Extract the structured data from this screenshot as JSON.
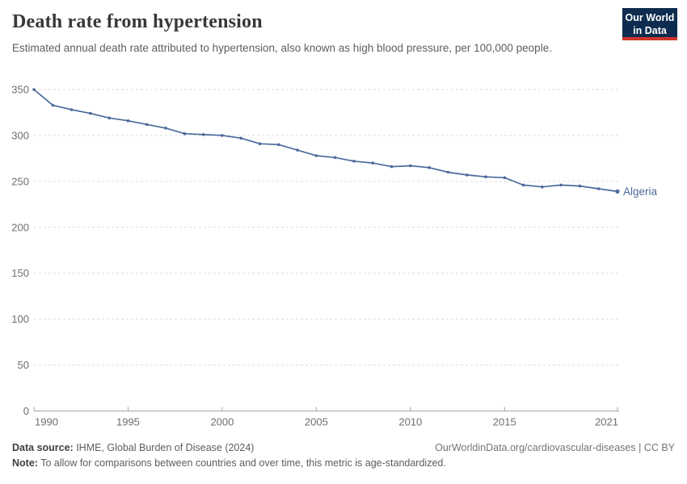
{
  "header": {
    "title": "Death rate from hypertension",
    "subtitle": "Estimated annual death rate attributed to hypertension, also known as high blood pressure, per 100,000 people.",
    "logo": {
      "line1": "Our World",
      "line2": "in Data",
      "bg_color": "#0d2c4f",
      "accent_color": "#d0352b"
    }
  },
  "chart_data": {
    "type": "line",
    "title": "Death rate from hypertension",
    "xlabel": "",
    "ylabel": "",
    "xlim": [
      1990,
      2021
    ],
    "ylim": [
      0,
      350
    ],
    "x_ticks": [
      1990,
      1995,
      2000,
      2005,
      2010,
      2015,
      2021
    ],
    "y_ticks": [
      0,
      50,
      100,
      150,
      200,
      250,
      300,
      350
    ],
    "grid": "horizontal-dashed",
    "legend_position": "end-of-line",
    "series": [
      {
        "name": "Algeria",
        "color": "#4c6a9c",
        "x": [
          1990,
          1991,
          1992,
          1993,
          1994,
          1995,
          1996,
          1997,
          1998,
          1999,
          2000,
          2001,
          2002,
          2003,
          2004,
          2005,
          2006,
          2007,
          2008,
          2009,
          2010,
          2011,
          2012,
          2013,
          2014,
          2015,
          2016,
          2017,
          2018,
          2019,
          2020,
          2021
        ],
        "values": [
          350,
          333,
          328,
          324,
          319,
          316,
          312,
          308,
          302,
          301,
          300,
          297,
          291,
          290,
          284,
          278,
          276,
          272,
          270,
          266,
          267,
          265,
          260,
          257,
          255,
          254,
          246,
          244,
          246,
          245,
          242,
          239
        ]
      }
    ],
    "axis_color": "#a3a3a3",
    "gridline_color": "#dcdcdc",
    "tick_label_color": "#6e6e6e"
  },
  "footer": {
    "source_label": "Data source:",
    "source_text": " IHME, Global Burden of Disease (2024)",
    "note_label": "Note:",
    "note_text": " To allow for comparisons between countries and over time, this metric is age-standardized.",
    "link_text": "OurWorldinData.org/cardiovascular-diseases | CC BY"
  }
}
